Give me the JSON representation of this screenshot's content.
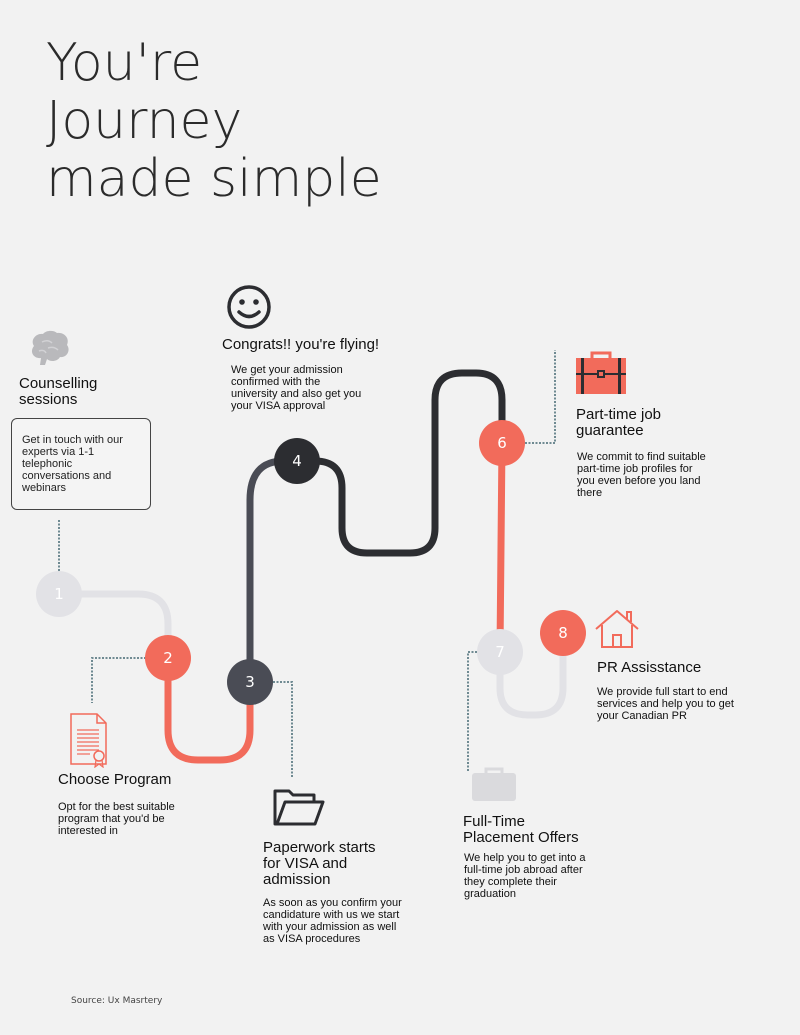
{
  "title_lines": [
    "You're",
    "Journey",
    "made simple"
  ],
  "steps": [
    {
      "number": "1",
      "heading_lines": [
        "Counselling",
        "sessions"
      ],
      "description": "Get in touch with our experts via 1-1 telephonic conversations and webinars",
      "icon": "brain-icon",
      "color": "#e2e2e6"
    },
    {
      "number": "2",
      "heading_lines": [
        "Choose Program"
      ],
      "description": "Opt for the best suitable program that you'd be interested in",
      "icon": "certificate-document-icon",
      "color": "#f26b5b"
    },
    {
      "number": "3",
      "heading_lines": [
        "Paperwork starts",
        "for VISA and",
        "admission"
      ],
      "description": "As soon as you confirm your candidature with us we start with your admission as well as VISA procedures",
      "icon": "open-folder-icon",
      "color": "#4a4c55"
    },
    {
      "number": "4",
      "heading_lines": [
        "Congrats!! you're flying!"
      ],
      "description": "We get your admission confirmed with the university and also get you your VISA approval",
      "icon": "smiley-face-icon",
      "color": "#2c2d31"
    },
    {
      "number": "6",
      "heading_lines": [
        "Part-time job",
        "guarantee"
      ],
      "description": "We commit to find suitable part-time job profiles for you even before you land there",
      "icon": "briefcase-icon",
      "color": "#f26b5b"
    },
    {
      "number": "7",
      "heading_lines": [
        "Full-Time",
        "Placement Offers"
      ],
      "description": "We help you to get into a full-time job abroad after they complete their graduation",
      "icon": "briefcase-light-icon",
      "color": "#e2e2e6"
    },
    {
      "number": "8",
      "heading_lines": [
        "PR Assisstance"
      ],
      "description": "We provide full start to end services and help you to get your Canadian PR",
      "icon": "house-icon",
      "color": "#f26b5b"
    }
  ],
  "path_colors": {
    "light": "#e2e2e6",
    "coral": "#f26b5b",
    "slate": "#4a4c55",
    "dark": "#2c2d31",
    "connector": "#6f8a92"
  },
  "source": "Source: Ux Masrtery"
}
